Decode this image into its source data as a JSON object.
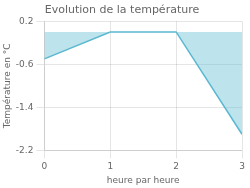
{
  "chart_data": {
    "type": "area",
    "title": "Evolution de la température",
    "xlabel": "heure par heure",
    "ylabel": "Température en °C",
    "x": [
      0,
      1,
      2,
      3
    ],
    "values": [
      -0.5,
      0.0,
      0.0,
      -1.9
    ],
    "color": "#5bb8d0",
    "xlim": [
      0,
      3
    ],
    "xticks": [
      0,
      1,
      2,
      3
    ],
    "ylim": [
      -2.2,
      0.2
    ],
    "yticks": [
      0.2,
      -0.6,
      -1.4,
      -2.2
    ],
    "grid": true
  }
}
